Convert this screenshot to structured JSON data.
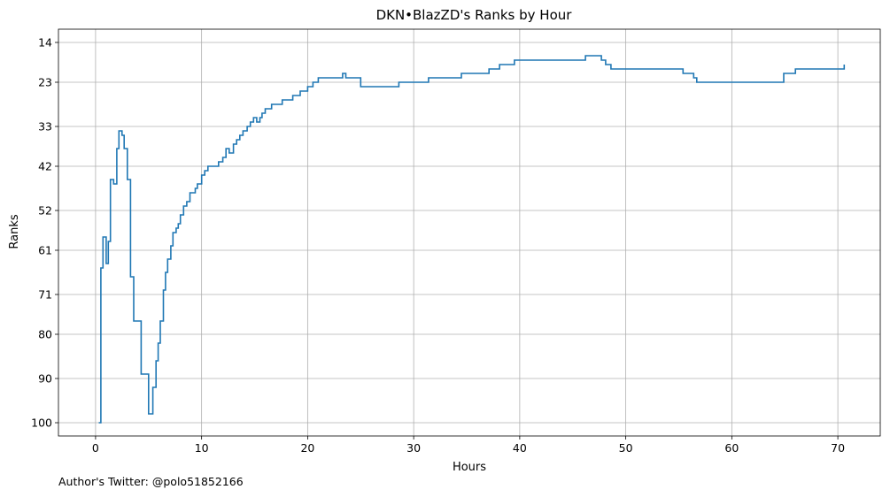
{
  "footer": {
    "author_note": "Author's Twitter: @polo51852166"
  },
  "chart_data": {
    "type": "line",
    "step": "post",
    "title": "DKN•BlazZD's Ranks by Hour",
    "xlabel": "Hours",
    "ylabel": "Ranks",
    "xlim": [
      -3.5,
      74.0
    ],
    "ylim": [
      103.0,
      11.0
    ],
    "y_inverted": true,
    "xticks": [
      0,
      10,
      20,
      30,
      40,
      50,
      60,
      70
    ],
    "xtick_labels": [
      "0",
      "10",
      "20",
      "30",
      "40",
      "50",
      "60",
      "70"
    ],
    "yticks": [
      14,
      23,
      33,
      42,
      52,
      61,
      71,
      80,
      90,
      100
    ],
    "ytick_labels": [
      "14",
      "23",
      "33",
      "42",
      "52",
      "61",
      "71",
      "80",
      "90",
      "100"
    ],
    "grid": true,
    "line_color": "#1f77b4",
    "series": [
      {
        "x": [
          0.3,
          0.5,
          0.7,
          1.0,
          1.2,
          1.4,
          1.7,
          2.0,
          2.2,
          2.5,
          2.7,
          3.0,
          3.3,
          3.6,
          4.3,
          5.0,
          5.4,
          5.7,
          5.9,
          6.1,
          6.4,
          6.6,
          6.8,
          7.1,
          7.3,
          7.6,
          7.8,
          8.0,
          8.3,
          8.6,
          8.9,
          9.1,
          9.4,
          9.6,
          10.0,
          10.3,
          10.6,
          11.0,
          11.3,
          11.6,
          12.0,
          12.3,
          12.6,
          13.0,
          13.3,
          13.6,
          13.9,
          14.3,
          14.6,
          14.9,
          15.2,
          15.5,
          15.7,
          16.0,
          16.3,
          16.6,
          17.0,
          17.3,
          17.6,
          18.0,
          18.6,
          19.3,
          20.0,
          20.5,
          21.0,
          22.0,
          23.0,
          23.3,
          23.6,
          24.0,
          25.0,
          28.6,
          31.4,
          34.5,
          37.1,
          38.1,
          39.5,
          46.2,
          46.7,
          47.3,
          47.7,
          48.1,
          48.6,
          52.3,
          55.4,
          56.4,
          56.7,
          64.9,
          66.0,
          70.6
        ],
        "y": [
          100,
          65,
          58,
          64,
          59,
          45,
          46,
          38,
          34,
          35,
          38,
          45,
          67,
          77,
          89,
          98,
          92,
          86,
          82,
          77,
          70,
          66,
          63,
          60,
          57,
          56,
          55,
          53,
          51,
          50,
          48,
          48,
          47,
          46,
          44,
          43,
          42,
          42,
          42,
          41,
          40,
          38,
          39,
          37,
          36,
          35,
          34,
          33,
          32,
          31,
          32,
          31,
          30,
          29,
          29,
          28,
          28,
          28,
          27,
          27,
          26,
          25,
          24,
          23,
          22,
          22,
          22,
          21,
          22,
          22,
          24,
          23,
          22,
          21,
          20,
          19,
          18,
          17,
          17,
          17,
          18,
          19,
          20,
          20,
          21,
          22,
          23,
          21,
          20,
          19
        ]
      }
    ]
  }
}
